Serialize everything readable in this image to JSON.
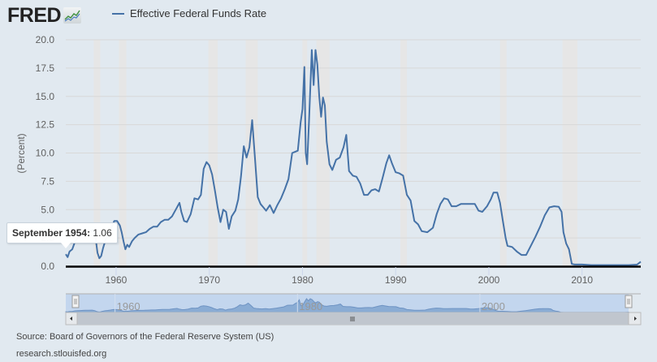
{
  "header": {
    "logo_text": "FRED",
    "logo_icon": "chart-line-icon"
  },
  "legend": {
    "items": [
      {
        "label": "Effective Federal Funds Rate",
        "color": "#4572a7"
      }
    ]
  },
  "tooltip": {
    "date": "September 1954",
    "separator": ":",
    "value": "1.06"
  },
  "footer": {
    "source": "Source: Board of Governors of the Federal Reserve System (US)",
    "url": "research.stlouisfed.org"
  },
  "colors": {
    "series": "#4572a7",
    "recession": "#e6e6e6",
    "navigator_fill": "#c3d6ee",
    "navigator_series": "#8aacd4",
    "background": "#e1e9f0"
  },
  "chart_data": {
    "type": "line",
    "title": "Effective Federal Funds Rate",
    "xlabel": "",
    "ylabel": "(Percent)",
    "ylim": [
      0,
      20
    ],
    "xlim": [
      1954.6,
      2016.3
    ],
    "yticks": [
      "0.0",
      "2.5",
      "5.0",
      "7.5",
      "10.0",
      "12.5",
      "15.0",
      "17.5",
      "20.0"
    ],
    "xticks": [
      "1960",
      "1970",
      "1980",
      "1990",
      "2000",
      "2010"
    ],
    "navigator_labels": [
      "1960",
      "1980",
      "2000"
    ],
    "grid": true,
    "legend_position": "top",
    "recessions": [
      [
        1957.6,
        1958.3
      ],
      [
        1960.3,
        1961.1
      ],
      [
        1969.9,
        1970.9
      ],
      [
        1973.9,
        1975.2
      ],
      [
        1980.0,
        1980.5
      ],
      [
        1981.5,
        1982.9
      ],
      [
        1990.5,
        1991.2
      ],
      [
        2001.2,
        2001.9
      ],
      [
        2007.9,
        2009.5
      ]
    ],
    "series": [
      {
        "name": "Effective Federal Funds Rate",
        "x": [
          1954.6,
          1954.8,
          1955.0,
          1955.3,
          1955.6,
          1955.9,
          1956.2,
          1956.5,
          1956.8,
          1957.1,
          1957.5,
          1957.8,
          1958.0,
          1958.2,
          1958.4,
          1958.6,
          1958.9,
          1959.2,
          1959.5,
          1959.8,
          1960.1,
          1960.4,
          1960.6,
          1960.8,
          1961.0,
          1961.2,
          1961.4,
          1961.7,
          1962.0,
          1962.4,
          1962.8,
          1963.2,
          1963.6,
          1964.0,
          1964.4,
          1964.8,
          1965.2,
          1965.6,
          1966.0,
          1966.4,
          1966.8,
          1967.0,
          1967.3,
          1967.6,
          1968.0,
          1968.4,
          1968.8,
          1969.1,
          1969.4,
          1969.7,
          1970.0,
          1970.3,
          1970.6,
          1970.9,
          1971.2,
          1971.5,
          1971.8,
          1972.1,
          1972.4,
          1972.8,
          1973.1,
          1973.4,
          1973.7,
          1974.0,
          1974.3,
          1974.6,
          1974.9,
          1975.2,
          1975.5,
          1975.8,
          1976.1,
          1976.5,
          1976.9,
          1977.3,
          1977.7,
          1978.1,
          1978.5,
          1978.9,
          1979.2,
          1979.5,
          1979.8,
          1980.0,
          1980.2,
          1980.35,
          1980.5,
          1980.7,
          1980.9,
          1981.0,
          1981.2,
          1981.4,
          1981.6,
          1981.8,
          1982.0,
          1982.2,
          1982.4,
          1982.6,
          1982.9,
          1983.2,
          1983.6,
          1984.0,
          1984.4,
          1984.7,
          1985.0,
          1985.4,
          1985.8,
          1986.2,
          1986.6,
          1987.0,
          1987.4,
          1987.8,
          1988.2,
          1988.6,
          1989.0,
          1989.3,
          1989.6,
          1990.0,
          1990.4,
          1990.8,
          1991.2,
          1991.6,
          1992.0,
          1992.4,
          1992.8,
          1993.4,
          1994.0,
          1994.4,
          1994.8,
          1995.2,
          1995.6,
          1996.0,
          1996.5,
          1997.0,
          1997.5,
          1998.0,
          1998.5,
          1998.9,
          1999.3,
          1999.8,
          2000.2,
          2000.5,
          2000.9,
          2001.2,
          2001.5,
          2001.8,
          2002.0,
          2002.5,
          2003.0,
          2003.5,
          2004.0,
          2004.5,
          2005.0,
          2005.5,
          2006.0,
          2006.5,
          2007.0,
          2007.5,
          2007.8,
          2008.0,
          2008.3,
          2008.6,
          2008.9,
          2009.2,
          2010.0,
          2011.0,
          2012.0,
          2013.0,
          2014.0,
          2015.0,
          2015.9,
          2016.3
        ],
        "values": [
          1.06,
          0.8,
          1.3,
          1.5,
          2.2,
          2.5,
          2.7,
          2.9,
          3.0,
          3.0,
          3.2,
          2.5,
          1.2,
          0.7,
          0.9,
          1.6,
          2.4,
          2.8,
          3.4,
          4.0,
          4.0,
          3.6,
          3.0,
          2.2,
          1.5,
          1.9,
          1.7,
          2.2,
          2.5,
          2.8,
          2.9,
          3.0,
          3.3,
          3.5,
          3.5,
          3.9,
          4.1,
          4.1,
          4.4,
          5.0,
          5.6,
          4.8,
          4.0,
          3.9,
          4.6,
          6.0,
          5.9,
          6.3,
          8.6,
          9.2,
          8.9,
          8.1,
          6.7,
          5.2,
          3.9,
          5.0,
          4.8,
          3.3,
          4.4,
          4.9,
          5.9,
          7.9,
          10.6,
          9.6,
          10.5,
          12.9,
          9.6,
          6.1,
          5.5,
          5.2,
          4.9,
          5.4,
          4.7,
          5.4,
          6.0,
          6.8,
          7.7,
          10.0,
          10.1,
          10.2,
          12.7,
          13.9,
          17.6,
          10.0,
          9.0,
          12.8,
          17.0,
          19.1,
          16.0,
          19.1,
          17.8,
          15.0,
          13.2,
          14.9,
          14.2,
          11.0,
          9.0,
          8.5,
          9.4,
          9.6,
          10.5,
          11.6,
          8.4,
          8.0,
          7.9,
          7.3,
          6.3,
          6.3,
          6.7,
          6.8,
          6.6,
          7.8,
          9.1,
          9.8,
          9.1,
          8.3,
          8.2,
          8.0,
          6.3,
          5.8,
          4.0,
          3.7,
          3.1,
          3.0,
          3.4,
          4.6,
          5.5,
          6.0,
          5.9,
          5.3,
          5.3,
          5.5,
          5.5,
          5.5,
          5.5,
          4.9,
          4.8,
          5.3,
          5.9,
          6.5,
          6.5,
          5.6,
          4.0,
          2.5,
          1.8,
          1.7,
          1.3,
          1.0,
          1.0,
          1.8,
          2.6,
          3.5,
          4.5,
          5.2,
          5.3,
          5.25,
          4.8,
          3.0,
          2.0,
          1.5,
          0.2,
          0.15,
          0.15,
          0.1,
          0.1,
          0.1,
          0.1,
          0.1,
          0.14,
          0.4
        ]
      }
    ]
  }
}
